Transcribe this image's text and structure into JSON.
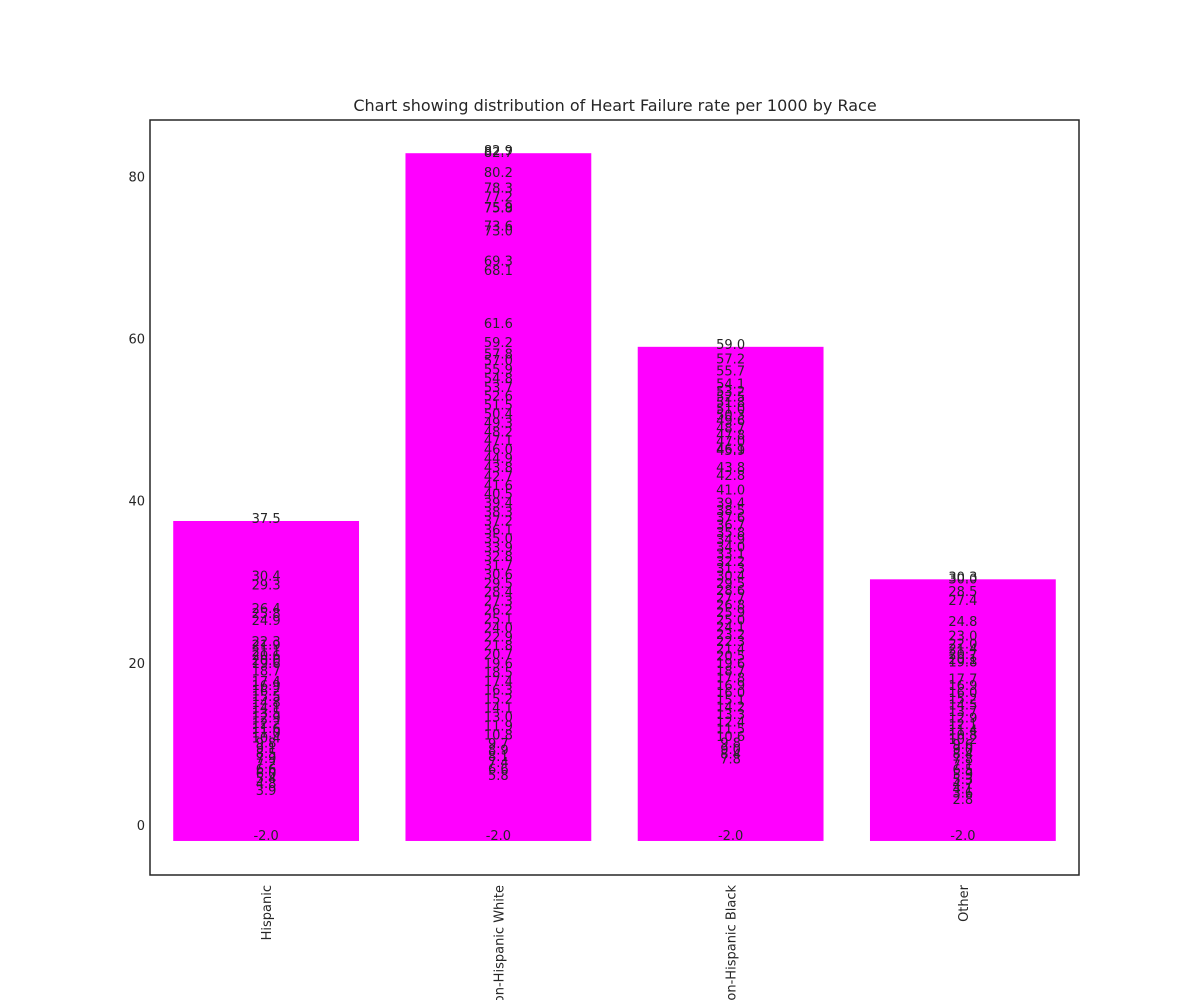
{
  "chart_data": {
    "type": "bar",
    "title": "Chart showing distribution of Heart Failure rate per 1000 by Race",
    "xlabel": "",
    "ylabel": "",
    "categories": [
      "Hispanic",
      "Non-Hispanic White",
      "Non-Hispanic Black",
      "Other"
    ],
    "values": [
      37.5,
      82.9,
      59.0,
      30.3
    ],
    "bar_base": -2.0,
    "ylim": [
      -6.2,
      87.0
    ],
    "yticks": [
      0,
      20,
      40,
      60,
      80
    ],
    "bar_color": "#ff00ff",
    "grid": false,
    "legend": "none",
    "x_tick_rotation": 90,
    "base_label": "-2.0",
    "value_labels": [
      [
        "37.5",
        "30.4",
        "29.3",
        "26.4",
        "25.8",
        "24.9",
        "22.3",
        "21.9",
        "21.1",
        "20.6",
        "20.0",
        "19.6",
        "18.7",
        "17.4",
        "16.9",
        "16.2",
        "15.5",
        "14.8",
        "14.1",
        "13.5",
        "12.9",
        "12.2",
        "11.6",
        "11.0",
        "10.4",
        "9.8",
        "9.1",
        "8.5",
        "7.9",
        "7.2",
        "6.6",
        "6.0",
        "5.4",
        "4.8",
        "3.9"
      ],
      [
        "82.9",
        "82.7",
        "80.2",
        "78.3",
        "77.2",
        "75.9",
        "75.8",
        "73.6",
        "73.0",
        "69.3",
        "68.1",
        "61.6",
        "59.2",
        "57.8",
        "57.0",
        "55.9",
        "54.8",
        "53.7",
        "52.6",
        "51.5",
        "50.4",
        "49.3",
        "48.2",
        "47.1",
        "46.0",
        "44.9",
        "43.8",
        "42.7",
        "41.6",
        "40.5",
        "39.4",
        "38.3",
        "37.2",
        "36.1",
        "35.0",
        "33.9",
        "32.8",
        "31.7",
        "30.6",
        "29.5",
        "28.4",
        "27.3",
        "26.2",
        "25.1",
        "24.0",
        "22.9",
        "21.8",
        "20.7",
        "19.6",
        "18.5",
        "17.4",
        "16.3",
        "15.2",
        "14.1",
        "13.0",
        "11.9",
        "10.8",
        "9.7",
        "8.9",
        "8.1",
        "7.4",
        "6.6",
        "5.8"
      ],
      [
        "59.0",
        "57.2",
        "55.7",
        "54.1",
        "53.2",
        "52.5",
        "51.8",
        "51.0",
        "50.3",
        "49.6",
        "48.7",
        "47.8",
        "47.0",
        "46.1",
        "45.9",
        "43.8",
        "42.8",
        "41.0",
        "39.4",
        "38.5",
        "37.6",
        "36.7",
        "35.8",
        "34.9",
        "34.0",
        "33.1",
        "32.2",
        "31.3",
        "30.4",
        "29.5",
        "28.6",
        "27.7",
        "26.8",
        "25.9",
        "25.0",
        "24.1",
        "23.2",
        "22.3",
        "21.4",
        "20.5",
        "19.6",
        "18.7",
        "17.8",
        "16.9",
        "16.0",
        "15.1",
        "14.2",
        "13.3",
        "12.4",
        "11.5",
        "10.6",
        "9.8",
        "9.0",
        "8.4",
        "7.8"
      ],
      [
        "30.3",
        "30.0",
        "28.5",
        "27.4",
        "24.8",
        "23.0",
        "22.0",
        "21.4",
        "20.7",
        "20.1",
        "19.8",
        "17.7",
        "16.9",
        "16.0",
        "15.2",
        "14.5",
        "13.7",
        "12.9",
        "12.1",
        "11.4",
        "10.8",
        "10.2",
        "9.6",
        "9.0",
        "8.4",
        "7.8",
        "7.1",
        "6.5",
        "5.9",
        "5.3",
        "4.7",
        "4.1",
        "3.6",
        "2.8"
      ]
    ]
  }
}
